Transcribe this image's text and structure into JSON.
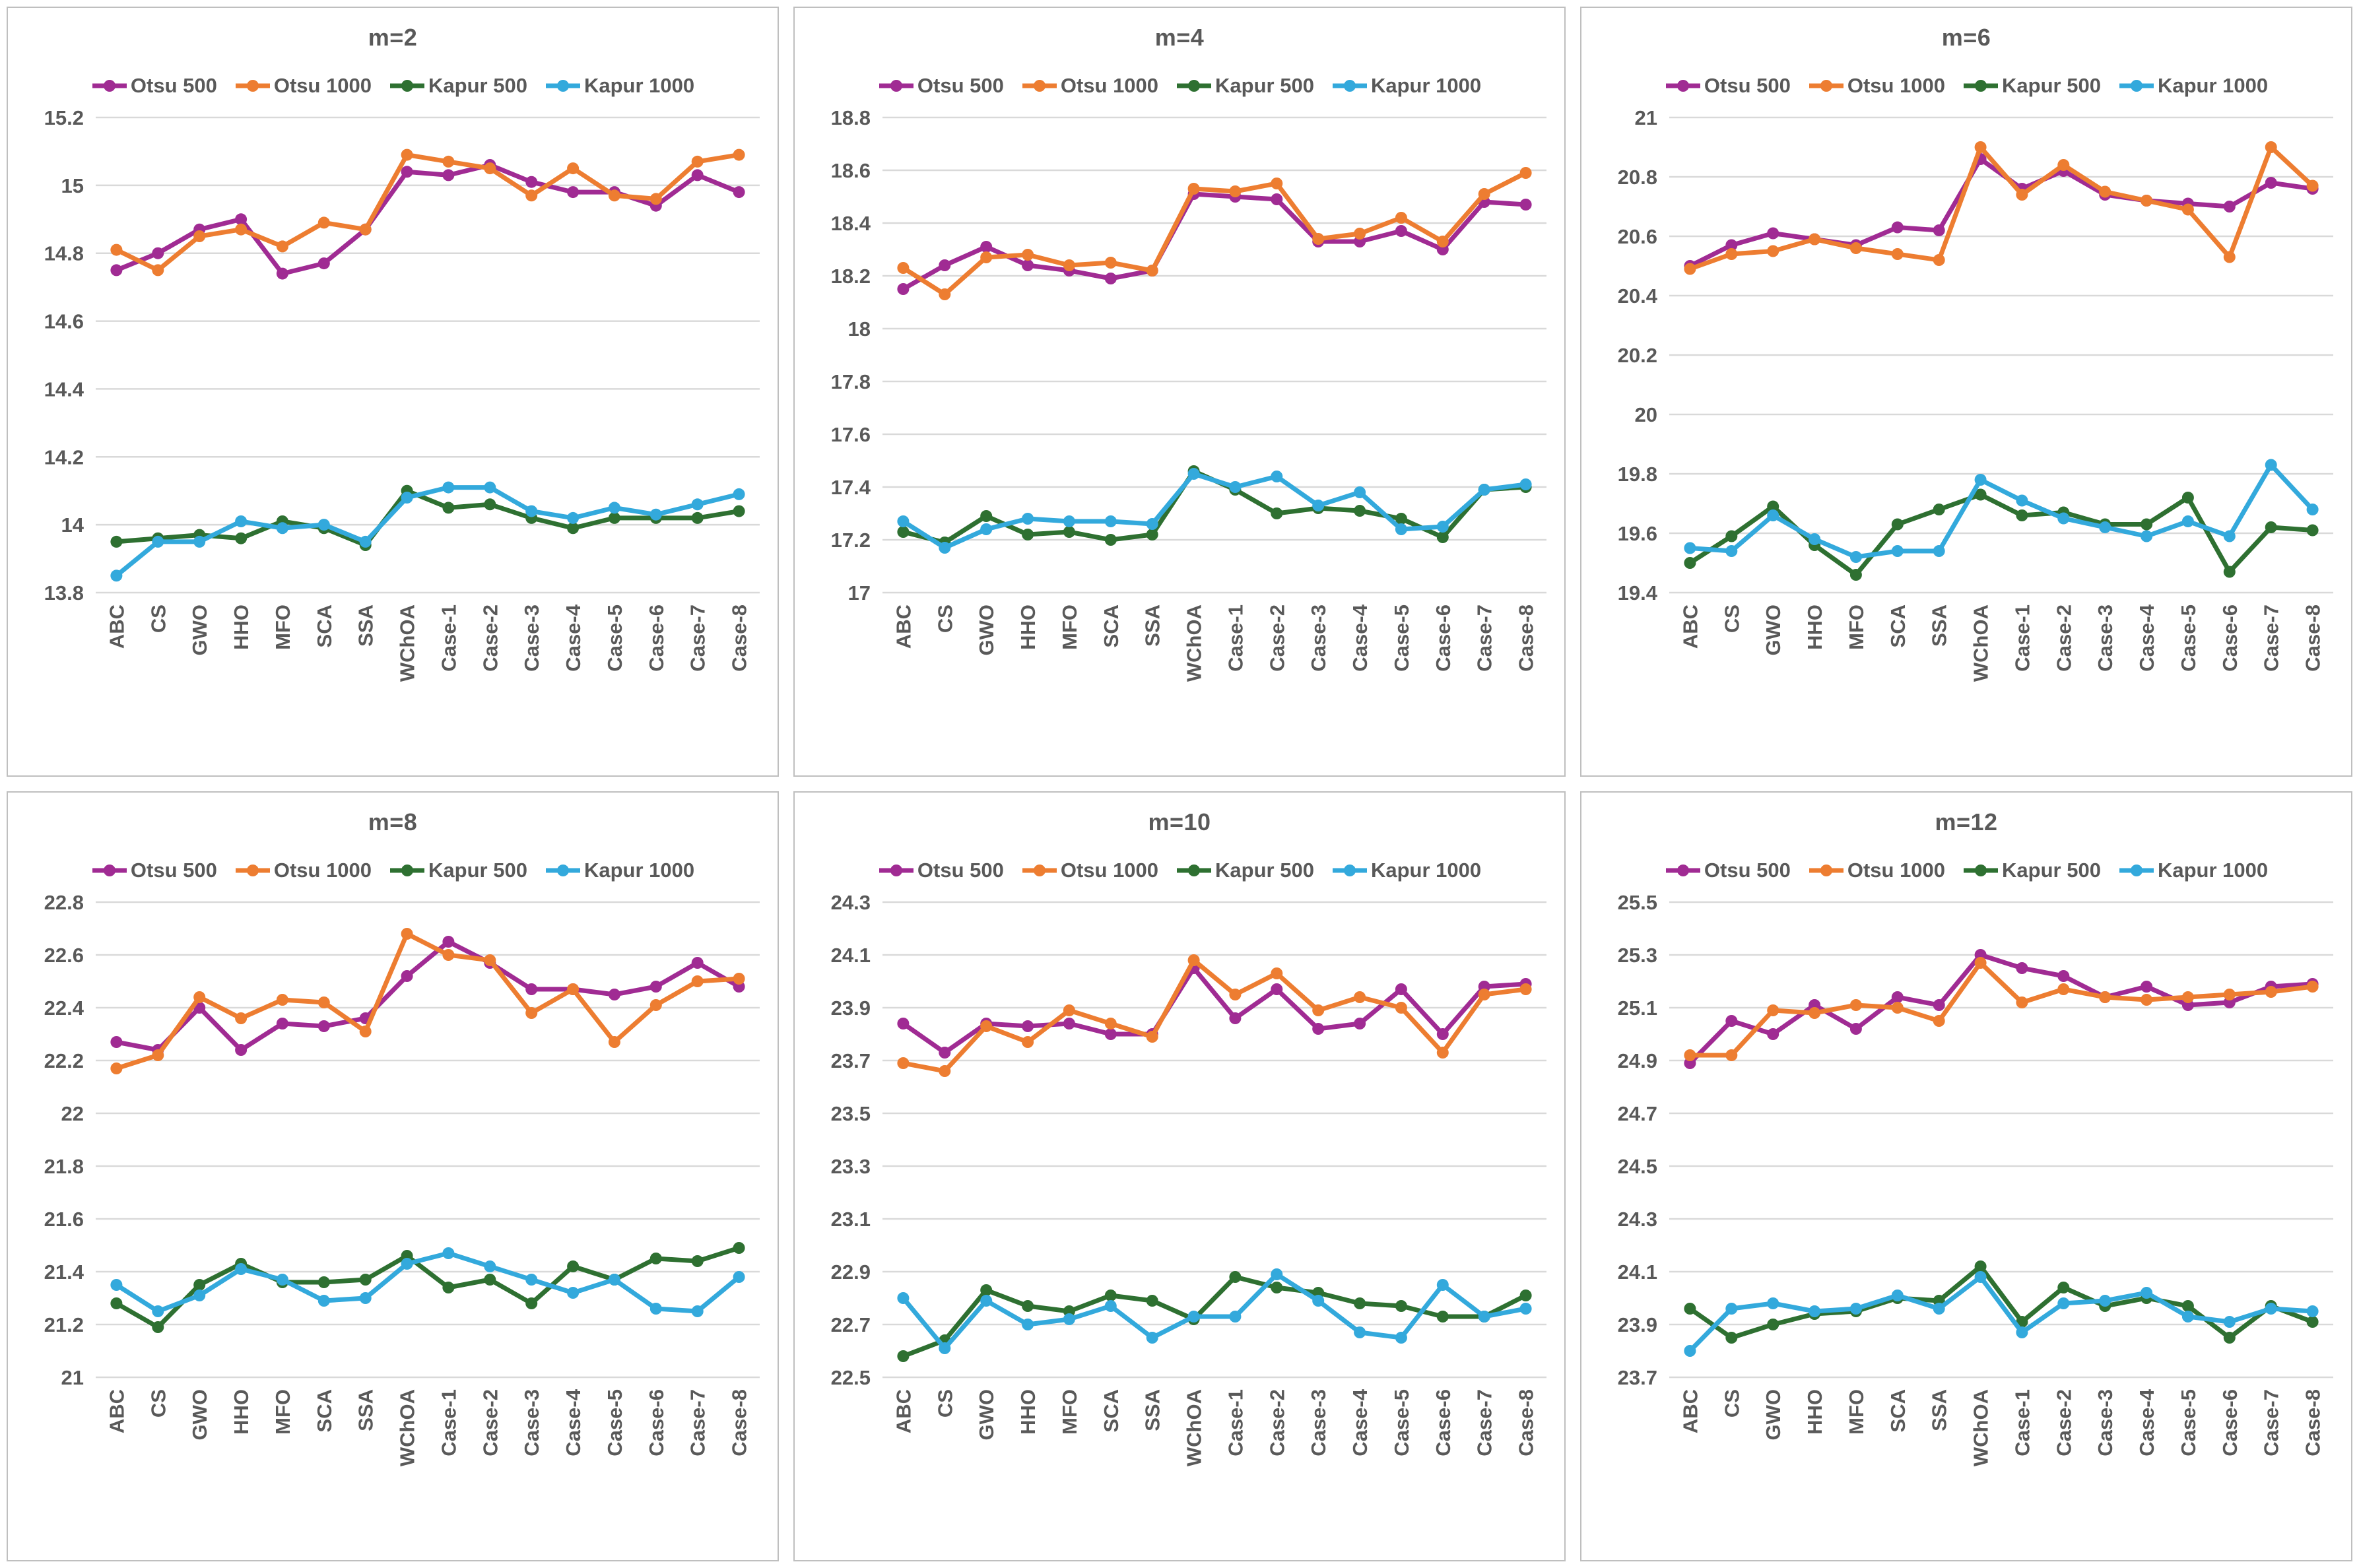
{
  "categories": [
    "ABC",
    "CS",
    "GWO",
    "HHO",
    "MFO",
    "SCA",
    "SSA",
    "WChOA",
    "Case-1",
    "Case-2",
    "Case-3",
    "Case-4",
    "Case-5",
    "Case-6",
    "Case-7",
    "Case-8"
  ],
  "series_meta": [
    {
      "name": "Otsu 500",
      "color": "#A02B93"
    },
    {
      "name": "Otsu 1000",
      "color": "#ED7D31"
    },
    {
      "name": "Kapur 500",
      "color": "#2E7031"
    },
    {
      "name": "Kapur 1000",
      "color": "#33A9DC"
    }
  ],
  "style": {
    "grid_color": "#d9d9d9",
    "text_color": "#595959",
    "border_color": "#bfbfbf"
  },
  "chart_data": [
    {
      "type": "line",
      "title": "m=2",
      "ylim": [
        13.8,
        15.2
      ],
      "ytick_step": 0.2,
      "grid": true,
      "legend_position": "top",
      "categories": [
        "ABC",
        "CS",
        "GWO",
        "HHO",
        "MFO",
        "SCA",
        "SSA",
        "WChOA",
        "Case-1",
        "Case-2",
        "Case-3",
        "Case-4",
        "Case-5",
        "Case-6",
        "Case-7",
        "Case-8"
      ],
      "series": [
        {
          "name": "Otsu 500",
          "values": [
            14.75,
            14.8,
            14.87,
            14.9,
            14.74,
            14.77,
            14.87,
            15.04,
            15.03,
            15.06,
            15.01,
            14.98,
            14.98,
            14.94,
            15.03,
            14.98
          ]
        },
        {
          "name": "Otsu 1000",
          "values": [
            14.81,
            14.75,
            14.85,
            14.87,
            14.82,
            14.89,
            14.87,
            15.09,
            15.07,
            15.05,
            14.97,
            15.05,
            14.97,
            14.96,
            15.07,
            15.09
          ]
        },
        {
          "name": "Kapur 500",
          "values": [
            13.95,
            13.96,
            13.97,
            13.96,
            14.01,
            13.99,
            13.94,
            14.1,
            14.05,
            14.06,
            14.02,
            13.99,
            14.02,
            14.02,
            14.02,
            14.04
          ]
        },
        {
          "name": "Kapur 1000",
          "values": [
            13.85,
            13.95,
            13.95,
            14.01,
            13.99,
            14.0,
            13.95,
            14.08,
            14.11,
            14.11,
            14.04,
            14.02,
            14.05,
            14.03,
            14.06,
            14.09
          ]
        }
      ]
    },
    {
      "type": "line",
      "title": "m=4",
      "ylim": [
        17.0,
        18.8
      ],
      "ytick_step": 0.2,
      "grid": true,
      "legend_position": "top",
      "categories": [
        "ABC",
        "CS",
        "GWO",
        "HHO",
        "MFO",
        "SCA",
        "SSA",
        "WChOA",
        "Case-1",
        "Case-2",
        "Case-3",
        "Case-4",
        "Case-5",
        "Case-6",
        "Case-7",
        "Case-8"
      ],
      "series": [
        {
          "name": "Otsu 500",
          "values": [
            18.15,
            18.24,
            18.31,
            18.24,
            18.22,
            18.19,
            18.22,
            18.51,
            18.5,
            18.49,
            18.33,
            18.33,
            18.37,
            18.3,
            18.48,
            18.47
          ]
        },
        {
          "name": "Otsu 1000",
          "values": [
            18.23,
            18.13,
            18.27,
            18.28,
            18.24,
            18.25,
            18.22,
            18.53,
            18.52,
            18.55,
            18.34,
            18.36,
            18.42,
            18.33,
            18.51,
            18.59
          ]
        },
        {
          "name": "Kapur 500",
          "values": [
            17.23,
            17.19,
            17.29,
            17.22,
            17.23,
            17.2,
            17.22,
            17.46,
            17.39,
            17.3,
            17.32,
            17.31,
            17.28,
            17.21,
            17.39,
            17.4
          ]
        },
        {
          "name": "Kapur 1000",
          "values": [
            17.27,
            17.17,
            17.24,
            17.28,
            17.27,
            17.27,
            17.26,
            17.45,
            17.4,
            17.44,
            17.33,
            17.38,
            17.24,
            17.25,
            17.39,
            17.41
          ]
        }
      ]
    },
    {
      "type": "line",
      "title": "m=6",
      "ylim": [
        19.4,
        21.0
      ],
      "ytick_step": 0.2,
      "grid": true,
      "legend_position": "top",
      "categories": [
        "ABC",
        "CS",
        "GWO",
        "HHO",
        "MFO",
        "SCA",
        "SSA",
        "WChOA",
        "Case-1",
        "Case-2",
        "Case-3",
        "Case-4",
        "Case-5",
        "Case-6",
        "Case-7",
        "Case-8"
      ],
      "series": [
        {
          "name": "Otsu 500",
          "values": [
            20.5,
            20.57,
            20.61,
            20.59,
            20.57,
            20.63,
            20.62,
            20.86,
            20.76,
            20.82,
            20.74,
            20.72,
            20.71,
            20.7,
            20.78,
            20.76
          ]
        },
        {
          "name": "Otsu 1000",
          "values": [
            20.49,
            20.54,
            20.55,
            20.59,
            20.56,
            20.54,
            20.52,
            20.9,
            20.74,
            20.84,
            20.75,
            20.72,
            20.69,
            20.53,
            20.9,
            20.77
          ]
        },
        {
          "name": "Kapur 500",
          "values": [
            19.5,
            19.59,
            19.69,
            19.56,
            19.46,
            19.63,
            19.68,
            19.73,
            19.66,
            19.67,
            19.63,
            19.63,
            19.72,
            19.47,
            19.62,
            19.61
          ]
        },
        {
          "name": "Kapur 1000",
          "values": [
            19.55,
            19.54,
            19.66,
            19.58,
            19.52,
            19.54,
            19.54,
            19.78,
            19.71,
            19.65,
            19.62,
            19.59,
            19.64,
            19.59,
            19.83,
            19.68
          ]
        }
      ]
    },
    {
      "type": "line",
      "title": "m=8",
      "ylim": [
        21.0,
        22.8
      ],
      "ytick_step": 0.2,
      "grid": true,
      "legend_position": "top",
      "categories": [
        "ABC",
        "CS",
        "GWO",
        "HHO",
        "MFO",
        "SCA",
        "SSA",
        "WChOA",
        "Case-1",
        "Case-2",
        "Case-3",
        "Case-4",
        "Case-5",
        "Case-6",
        "Case-7",
        "Case-8"
      ],
      "series": [
        {
          "name": "Otsu 500",
          "values": [
            22.27,
            22.24,
            22.4,
            22.24,
            22.34,
            22.33,
            22.36,
            22.52,
            22.65,
            22.57,
            22.47,
            22.47,
            22.45,
            22.48,
            22.57,
            22.48
          ]
        },
        {
          "name": "Otsu 1000",
          "values": [
            22.17,
            22.22,
            22.44,
            22.36,
            22.43,
            22.42,
            22.31,
            22.68,
            22.6,
            22.58,
            22.38,
            22.47,
            22.27,
            22.41,
            22.5,
            22.51
          ]
        },
        {
          "name": "Kapur 500",
          "values": [
            21.28,
            21.19,
            21.35,
            21.43,
            21.36,
            21.36,
            21.37,
            21.46,
            21.34,
            21.37,
            21.28,
            21.42,
            21.37,
            21.45,
            21.44,
            21.49
          ]
        },
        {
          "name": "Kapur 1000",
          "values": [
            21.35,
            21.25,
            21.31,
            21.41,
            21.37,
            21.29,
            21.3,
            21.43,
            21.47,
            21.42,
            21.37,
            21.32,
            21.37,
            21.26,
            21.25,
            21.38
          ]
        }
      ]
    },
    {
      "type": "line",
      "title": "m=10",
      "ylim": [
        22.5,
        24.3
      ],
      "ytick_step": 0.2,
      "grid": true,
      "legend_position": "top",
      "categories": [
        "ABC",
        "CS",
        "GWO",
        "HHO",
        "MFO",
        "SCA",
        "SSA",
        "WChOA",
        "Case-1",
        "Case-2",
        "Case-3",
        "Case-4",
        "Case-5",
        "Case-6",
        "Case-7",
        "Case-8"
      ],
      "series": [
        {
          "name": "Otsu 500",
          "values": [
            23.84,
            23.73,
            23.84,
            23.83,
            23.84,
            23.8,
            23.8,
            24.05,
            23.86,
            23.97,
            23.82,
            23.84,
            23.97,
            23.8,
            23.98,
            23.99
          ]
        },
        {
          "name": "Otsu 1000",
          "values": [
            23.69,
            23.66,
            23.83,
            23.77,
            23.89,
            23.84,
            23.79,
            24.08,
            23.95,
            24.03,
            23.89,
            23.94,
            23.9,
            23.73,
            23.95,
            23.97
          ]
        },
        {
          "name": "Kapur 500",
          "values": [
            22.58,
            22.64,
            22.83,
            22.77,
            22.75,
            22.81,
            22.79,
            22.72,
            22.88,
            22.84,
            22.82,
            22.78,
            22.77,
            22.73,
            22.73,
            22.81
          ]
        },
        {
          "name": "Kapur 1000",
          "values": [
            22.8,
            22.61,
            22.79,
            22.7,
            22.72,
            22.77,
            22.65,
            22.73,
            22.73,
            22.89,
            22.79,
            22.67,
            22.65,
            22.85,
            22.73,
            22.76
          ]
        }
      ]
    },
    {
      "type": "line",
      "title": "m=12",
      "ylim": [
        23.7,
        25.5
      ],
      "ytick_step": 0.2,
      "grid": true,
      "legend_position": "top",
      "categories": [
        "ABC",
        "CS",
        "GWO",
        "HHO",
        "MFO",
        "SCA",
        "SSA",
        "WChOA",
        "Case-1",
        "Case-2",
        "Case-3",
        "Case-4",
        "Case-5",
        "Case-6",
        "Case-7",
        "Case-8"
      ],
      "series": [
        {
          "name": "Otsu 500",
          "values": [
            24.89,
            25.05,
            25.0,
            25.11,
            25.02,
            25.14,
            25.11,
            25.3,
            25.25,
            25.22,
            25.14,
            25.18,
            25.11,
            25.12,
            25.18,
            25.19
          ]
        },
        {
          "name": "Otsu 1000",
          "values": [
            24.92,
            24.92,
            25.09,
            25.08,
            25.11,
            25.1,
            25.05,
            25.27,
            25.12,
            25.17,
            25.14,
            25.13,
            25.14,
            25.15,
            25.16,
            25.18
          ]
        },
        {
          "name": "Kapur 500",
          "values": [
            23.96,
            23.85,
            23.9,
            23.94,
            23.95,
            24.0,
            23.99,
            24.12,
            23.91,
            24.04,
            23.97,
            24.0,
            23.97,
            23.85,
            23.97,
            23.91
          ]
        },
        {
          "name": "Kapur 1000",
          "values": [
            23.8,
            23.96,
            23.98,
            23.95,
            23.96,
            24.01,
            23.96,
            24.08,
            23.87,
            23.98,
            23.99,
            24.02,
            23.93,
            23.91,
            23.96,
            23.95
          ]
        }
      ]
    }
  ]
}
